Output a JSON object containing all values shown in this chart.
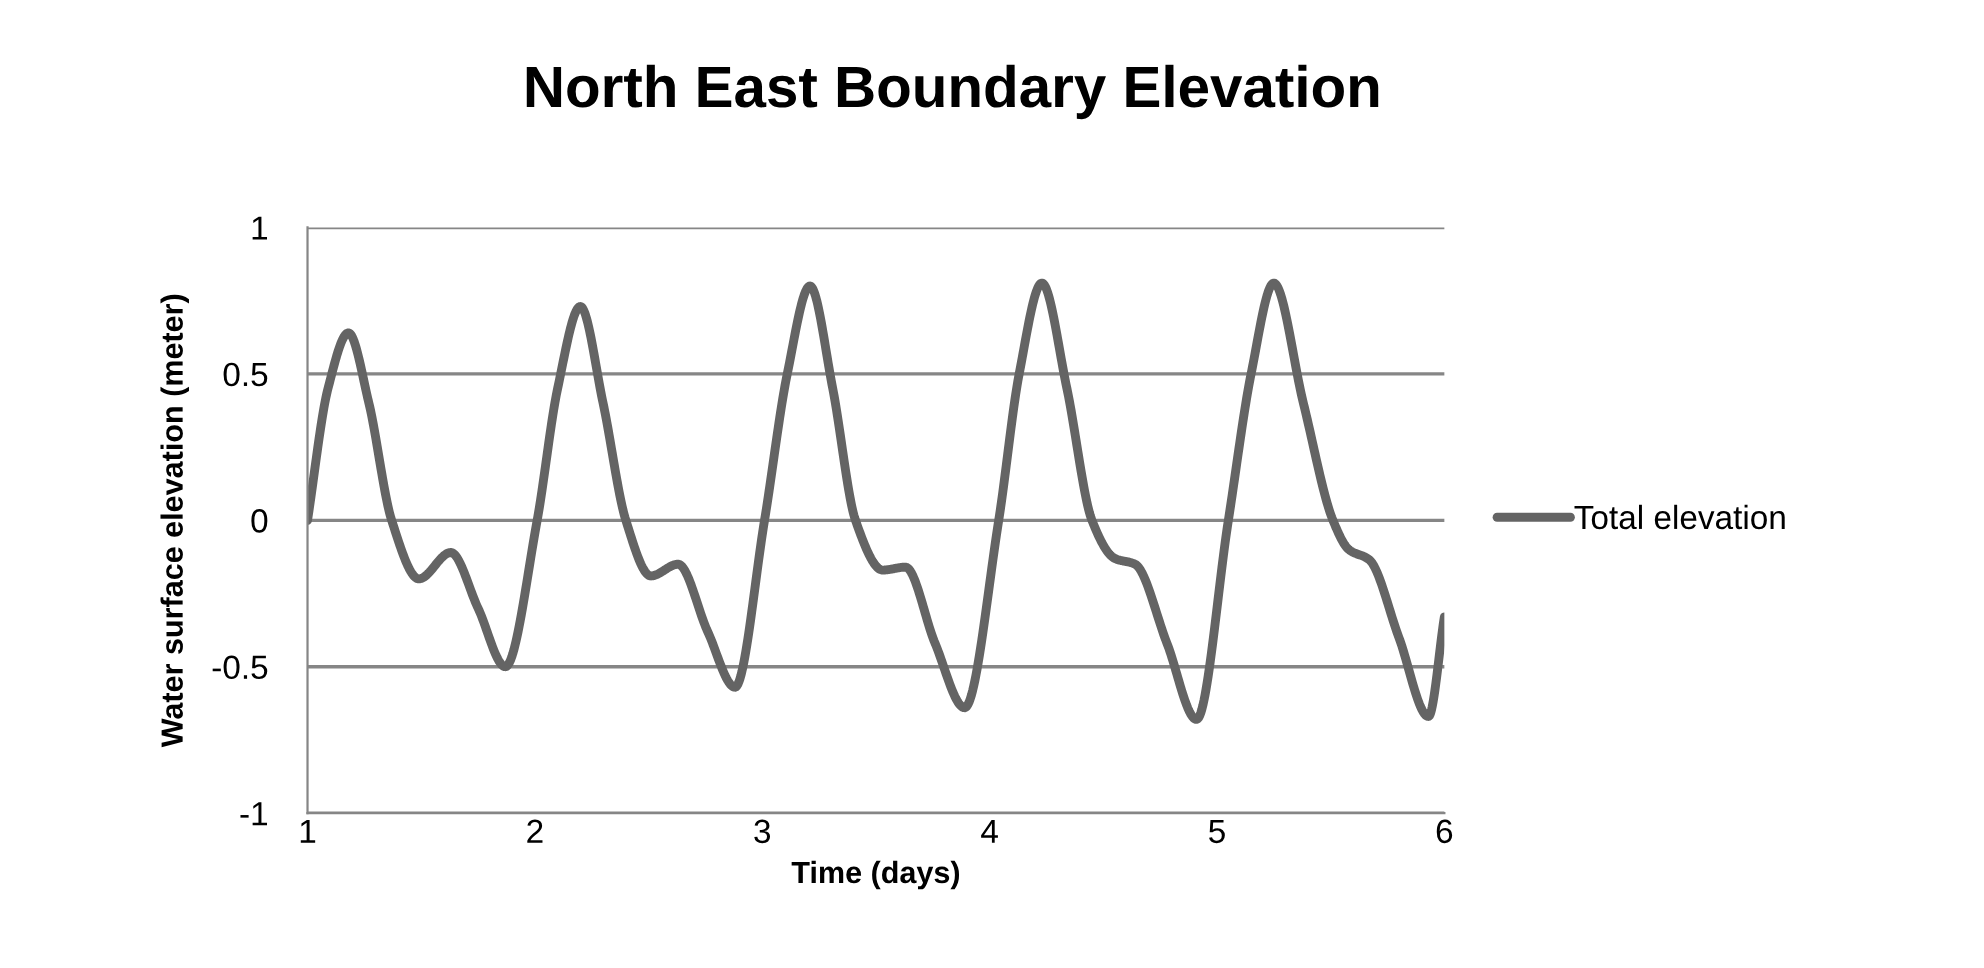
{
  "chart_data": {
    "type": "line",
    "title": "North East Boundary Elevation",
    "xlabel": "Time (days)",
    "ylabel": "Water surface elevation (meter)",
    "xlim": [
      1,
      6
    ],
    "xticks": [
      1,
      2,
      3,
      4,
      5,
      6
    ],
    "ylim": [
      -1,
      1
    ],
    "yticks": [
      -1,
      -0.5,
      0,
      0.5,
      1
    ],
    "grid": "y",
    "legend": "right",
    "marker": "none",
    "line_style": "solid",
    "series": [
      {
        "name": "Total elevation",
        "color": "#646464",
        "x": [
          1.0,
          1.09,
          1.18,
          1.27,
          1.37,
          1.49,
          1.63,
          1.75,
          1.87,
          2.01,
          2.1,
          2.2,
          2.3,
          2.4,
          2.51,
          2.63,
          2.76,
          2.88,
          3.01,
          3.11,
          3.21,
          3.31,
          3.41,
          3.53,
          3.63,
          3.76,
          3.89,
          4.04,
          4.13,
          4.23,
          4.34,
          4.45,
          4.55,
          4.64,
          4.78,
          4.91,
          5.05,
          5.15,
          5.25,
          5.38,
          5.51,
          5.58,
          5.67,
          5.8,
          5.93,
          6.0
        ],
        "values": [
          0.0,
          0.45,
          0.64,
          0.4,
          0.0,
          -0.2,
          -0.11,
          -0.3,
          -0.5,
          0.0,
          0.45,
          0.73,
          0.4,
          0.0,
          -0.19,
          -0.15,
          -0.38,
          -0.57,
          0.0,
          0.5,
          0.8,
          0.45,
          0.0,
          -0.17,
          -0.16,
          -0.42,
          -0.64,
          0.0,
          0.5,
          0.81,
          0.45,
          0.0,
          -0.13,
          -0.15,
          -0.42,
          -0.68,
          0.0,
          0.5,
          0.81,
          0.4,
          0.0,
          -0.1,
          -0.135,
          -0.4,
          -0.67,
          -0.33
        ]
      }
    ]
  }
}
